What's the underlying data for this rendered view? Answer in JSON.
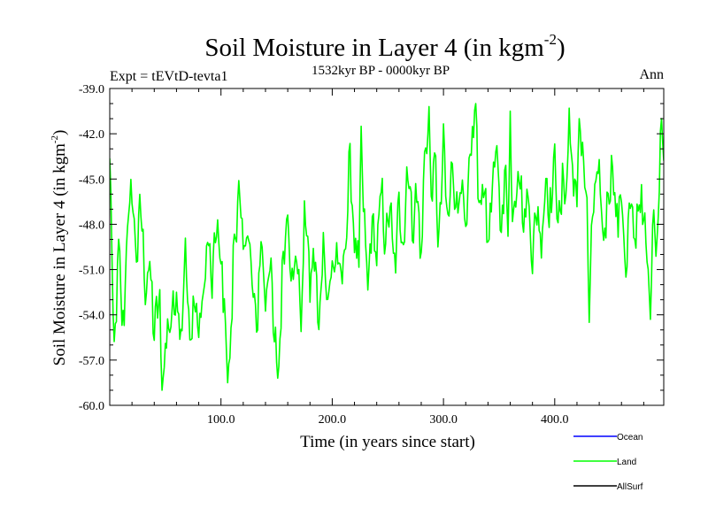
{
  "chart_data": {
    "type": "line",
    "title": "Soil Moisture in Layer 4 (in kgm",
    "title_superscript": "-2",
    "title_close": ")",
    "subtitle_left": "Expt = tEVtD-tevta1",
    "subtitle_center": "1532kyr BP - 0000kyr BP",
    "subtitle_right": "Ann",
    "xlabel": "Time (in years since start)",
    "ylabel": "Soil Moisture in Layer 4 (in kgm",
    "ylabel_superscript": "-2",
    "ylabel_close": ")",
    "xlim": [
      0,
      498
    ],
    "ylim": [
      -60.0,
      -39.0
    ],
    "xticks": [
      100,
      200,
      300,
      400
    ],
    "xtick_labels": [
      "100.0",
      "200.0",
      "300.0",
      "400.0"
    ],
    "yticks": [
      -39,
      -42,
      -45,
      -48,
      -51,
      -54,
      -57,
      -60
    ],
    "ytick_labels": [
      "-39.0",
      "-42.0",
      "-45.0",
      "-48.0",
      "-51.0",
      "-54.0",
      "-57.0",
      "-60.0"
    ],
    "grid": false,
    "legend": [
      {
        "name": "Ocean",
        "color": "#0000ff"
      },
      {
        "name": "Land",
        "color": "#00ff00"
      },
      {
        "name": "AllSurf",
        "color": "#000000"
      }
    ],
    "legend_position": "bottom-right",
    "series": [
      {
        "name": "Land",
        "color": "#00ff00",
        "anchors": [
          [
            0,
            -44
          ],
          [
            4,
            -56.5
          ],
          [
            8,
            -50
          ],
          [
            12,
            -55
          ],
          [
            16,
            -48
          ],
          [
            20,
            -46
          ],
          [
            24,
            -50
          ],
          [
            28,
            -47
          ],
          [
            32,
            -52
          ],
          [
            36,
            -51
          ],
          [
            40,
            -55
          ],
          [
            44,
            -53
          ],
          [
            48,
            -57.5
          ],
          [
            52,
            -55
          ],
          [
            56,
            -54
          ],
          [
            60,
            -52.5
          ],
          [
            64,
            -55
          ],
          [
            68,
            -50
          ],
          [
            72,
            -56
          ],
          [
            76,
            -53
          ],
          [
            80,
            -55
          ],
          [
            84,
            -53
          ],
          [
            88,
            -49
          ],
          [
            92,
            -52
          ],
          [
            96,
            -48
          ],
          [
            100,
            -51
          ],
          [
            104,
            -54
          ],
          [
            108,
            -57
          ],
          [
            112,
            -49
          ],
          [
            116,
            -46
          ],
          [
            120,
            -50
          ],
          [
            124,
            -48
          ],
          [
            128,
            -52
          ],
          [
            132,
            -55
          ],
          [
            136,
            -49
          ],
          [
            140,
            -53
          ],
          [
            144,
            -50
          ],
          [
            148,
            -56
          ],
          [
            152,
            -57
          ],
          [
            156,
            -50
          ],
          [
            160,
            -47
          ],
          [
            164,
            -52
          ],
          [
            168,
            -50
          ],
          [
            172,
            -54
          ],
          [
            176,
            -47
          ],
          [
            180,
            -52
          ],
          [
            184,
            -50
          ],
          [
            188,
            -55
          ],
          [
            192,
            -49
          ],
          [
            196,
            -53
          ],
          [
            200,
            -51
          ],
          [
            204,
            -50
          ],
          [
            208,
            -52
          ],
          [
            212,
            -49
          ],
          [
            216,
            -44
          ],
          [
            220,
            -49
          ],
          [
            224,
            -51
          ],
          [
            228,
            -47
          ],
          [
            232,
            -52
          ],
          [
            236,
            -48
          ],
          [
            240,
            -50
          ],
          [
            244,
            -46
          ],
          [
            248,
            -49
          ],
          [
            252,
            -47
          ],
          [
            256,
            -51
          ],
          [
            260,
            -47
          ],
          [
            264,
            -49
          ],
          [
            268,
            -44
          ],
          [
            272,
            -48
          ],
          [
            276,
            -46
          ],
          [
            280,
            -50
          ],
          [
            284,
            -42
          ],
          [
            288,
            -47
          ],
          [
            292,
            -44
          ],
          [
            296,
            -49
          ],
          [
            300,
            -43
          ],
          [
            304,
            -48
          ],
          [
            308,
            -44
          ],
          [
            312,
            -47
          ],
          [
            316,
            -45
          ],
          [
            320,
            -49
          ],
          [
            324,
            -44
          ],
          [
            328,
            -41
          ],
          [
            332,
            -47
          ],
          [
            336,
            -45
          ],
          [
            340,
            -49
          ],
          [
            344,
            -46
          ],
          [
            348,
            -43
          ],
          [
            352,
            -48
          ],
          [
            356,
            -45
          ],
          [
            360,
            -50
          ],
          [
            364,
            -46
          ],
          [
            368,
            -44
          ],
          [
            372,
            -48
          ],
          [
            376,
            -46
          ],
          [
            380,
            -50
          ],
          [
            384,
            -47
          ],
          [
            388,
            -49
          ],
          [
            392,
            -45
          ],
          [
            396,
            -47
          ],
          [
            400,
            -44
          ],
          [
            404,
            -48
          ],
          [
            408,
            -45
          ],
          [
            412,
            -46
          ],
          [
            416,
            -44
          ],
          [
            420,
            -47
          ],
          [
            424,
            -42
          ],
          [
            428,
            -46
          ],
          [
            432,
            -49
          ],
          [
            436,
            -46
          ],
          [
            440,
            -45
          ],
          [
            444,
            -49
          ],
          [
            448,
            -46
          ],
          [
            452,
            -44
          ],
          [
            456,
            -48
          ],
          [
            460,
            -46
          ],
          [
            464,
            -50
          ],
          [
            468,
            -47
          ],
          [
            472,
            -49
          ],
          [
            476,
            -46
          ],
          [
            480,
            -48
          ],
          [
            484,
            -51
          ],
          [
            488,
            -47
          ],
          [
            492,
            -49
          ],
          [
            496,
            -42
          ],
          [
            498,
            -44
          ]
        ],
        "extremes": [
          [
            47,
            -59.0
          ],
          [
            106,
            -58.5
          ],
          [
            151,
            -58.2
          ],
          [
            226,
            -41.5
          ],
          [
            287,
            -40.2
          ],
          [
            329,
            -40.0
          ],
          [
            360,
            -40.5
          ],
          [
            413,
            -40.3
          ],
          [
            422,
            -41.0
          ],
          [
            431,
            -54.5
          ],
          [
            464,
            -51.5
          ],
          [
            486,
            -54.3
          ],
          [
            496,
            -41.0
          ]
        ]
      },
      {
        "name": "Ocean",
        "color": "#0000ff",
        "values": []
      },
      {
        "name": "AllSurf",
        "color": "#000000",
        "values": []
      }
    ]
  }
}
